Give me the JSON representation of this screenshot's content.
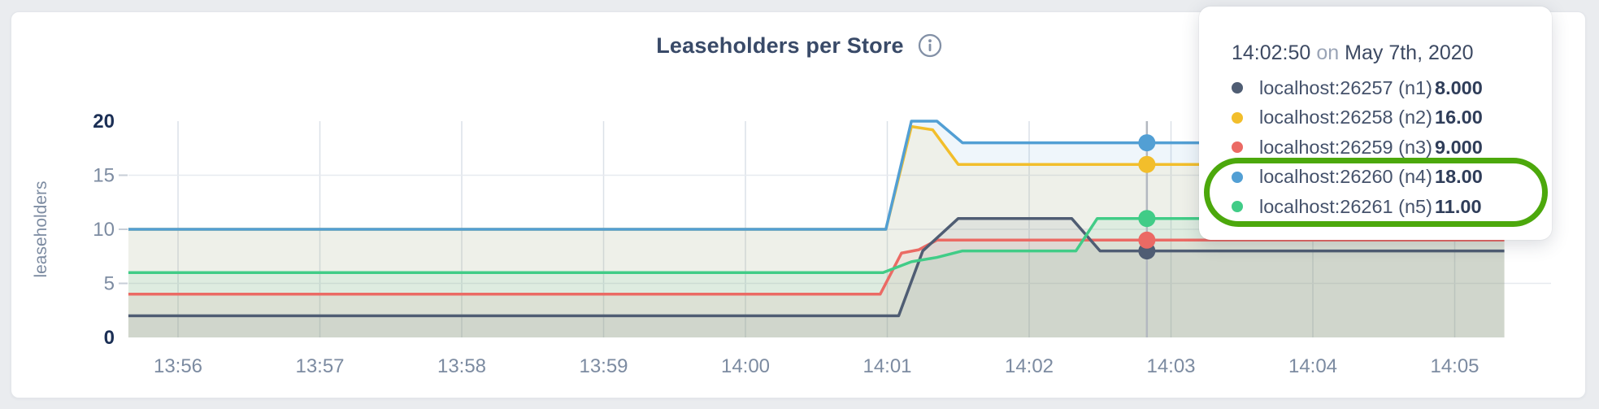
{
  "header": {
    "title": "Leaseholders per Store",
    "info_icon": "info"
  },
  "y_axis": {
    "label": "leaseholders"
  },
  "chart_data": {
    "type": "area",
    "title": "Leaseholders per Store",
    "xlabel": "",
    "ylabel": "leaseholders",
    "ylim": [
      0,
      20
    ],
    "grid": true,
    "x_unit": "minutes since 13:00",
    "x_ticks": [
      {
        "t": 56,
        "label": "13:56"
      },
      {
        "t": 57,
        "label": "13:57"
      },
      {
        "t": 58,
        "label": "13:58"
      },
      {
        "t": 59,
        "label": "13:59"
      },
      {
        "t": 60,
        "label": "14:00"
      },
      {
        "t": 61,
        "label": "14:01"
      },
      {
        "t": 62,
        "label": "14:02"
      },
      {
        "t": 63,
        "label": "14:03"
      },
      {
        "t": 64,
        "label": "14:04"
      },
      {
        "t": 65,
        "label": "14:05"
      }
    ],
    "y_ticks": [
      {
        "v": 0,
        "label": "0",
        "bold": true
      },
      {
        "v": 5,
        "label": "5",
        "bold": false
      },
      {
        "v": 10,
        "label": "10",
        "bold": false
      },
      {
        "v": 15,
        "label": "15",
        "bold": false
      },
      {
        "v": 20,
        "label": "20",
        "bold": true
      }
    ],
    "series": [
      {
        "id": "n1",
        "name": "localhost:26257 (n1)",
        "color": "#4F5D73",
        "points": [
          [
            55.65,
            2
          ],
          [
            61.08,
            2
          ],
          [
            61.25,
            8
          ],
          [
            61.5,
            11
          ],
          [
            62.3,
            11
          ],
          [
            62.5,
            8
          ],
          [
            65.35,
            8
          ]
        ]
      },
      {
        "id": "n2",
        "name": "localhost:26258 (n2)",
        "color": "#F2BE2B",
        "points": [
          [
            55.65,
            10
          ],
          [
            60.99,
            10
          ],
          [
            61.17,
            19.5
          ],
          [
            61.32,
            19.2
          ],
          [
            61.5,
            16
          ],
          [
            65.35,
            16
          ]
        ]
      },
      {
        "id": "n3",
        "name": "localhost:26259 (n3)",
        "color": "#EB6A64",
        "points": [
          [
            55.65,
            4
          ],
          [
            60.95,
            4
          ],
          [
            61.1,
            7.8
          ],
          [
            61.22,
            8.1
          ],
          [
            61.35,
            9
          ],
          [
            65.35,
            9
          ]
        ]
      },
      {
        "id": "n4",
        "name": "localhost:26260 (n4)",
        "color": "#529FD4",
        "points": [
          [
            55.65,
            10
          ],
          [
            60.99,
            10
          ],
          [
            61.17,
            20
          ],
          [
            61.35,
            20
          ],
          [
            61.53,
            18
          ],
          [
            65.35,
            18
          ]
        ]
      },
      {
        "id": "n5",
        "name": "localhost:26261 (n5)",
        "color": "#41CC87",
        "points": [
          [
            55.65,
            6
          ],
          [
            60.97,
            6
          ],
          [
            61.17,
            7
          ],
          [
            61.35,
            7.4
          ],
          [
            61.53,
            8
          ],
          [
            62.33,
            8
          ],
          [
            62.48,
            11
          ],
          [
            65.35,
            11
          ]
        ]
      }
    ],
    "hover": {
      "t": 62.83,
      "time_label": "14:02:50",
      "values": {
        "n1": 8,
        "n2": 16,
        "n3": 9,
        "n4": 18,
        "n5": 11
      }
    },
    "fill_opacity": 0.09,
    "line_z_order": [
      "n2",
      "n4",
      "n3",
      "n1",
      "n5"
    ]
  },
  "tooltip": {
    "time": "14:02:50",
    "conj": "on",
    "date": "May 7th, 2020",
    "rows": [
      {
        "label": "localhost:26257 (n1)",
        "value": "8.000",
        "color": "#4F5D73"
      },
      {
        "label": "localhost:26258 (n2)",
        "value": "16.00",
        "color": "#F2BE2B"
      },
      {
        "label": "localhost:26259 (n3)",
        "value": "9.000",
        "color": "#EB6A64"
      },
      {
        "label": "localhost:26260 (n4)",
        "value": "18.00",
        "color": "#529FD4"
      },
      {
        "label": "localhost:26261 (n5)",
        "value": "11.00",
        "color": "#41CC87"
      }
    ]
  },
  "annotation": {
    "color": "#4ca80c",
    "wraps_rows": [
      "localhost:26260 (n4)",
      "localhost:26261 (n5)"
    ]
  },
  "colors": {
    "page_bg": "#eaecef",
    "card_bg": "#ffffff",
    "title_text": "#394a68",
    "axis_text": "#7c8ba1",
    "axis_text_bold": "#1b2f55",
    "grid_vertical": "#dce1e8",
    "grid_horizontal": "#e7eaef",
    "hover_line": "#b3b8c0"
  }
}
